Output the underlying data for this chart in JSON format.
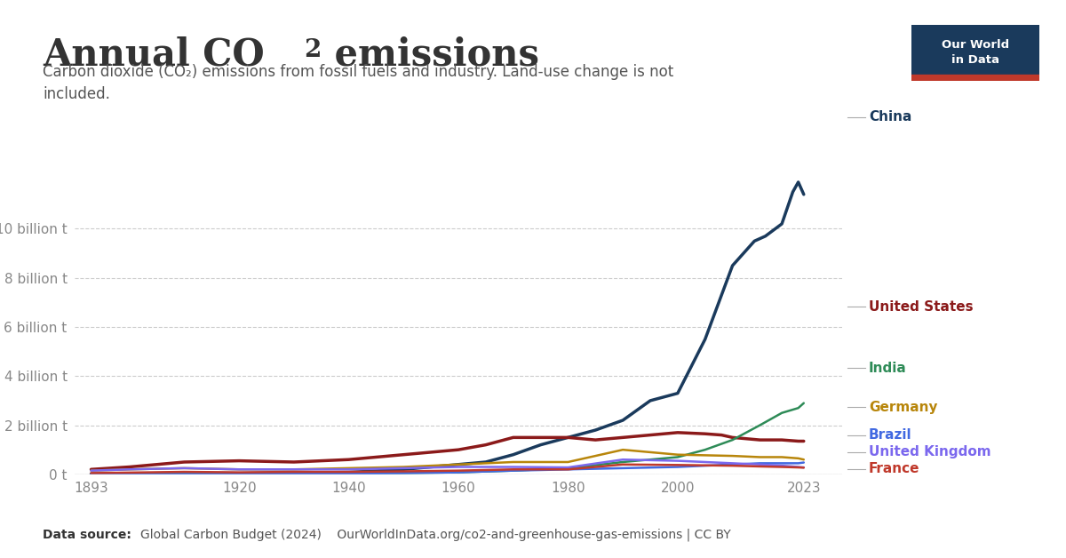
{
  "title": "Annual CO₂ emissions",
  "subtitle": "Carbon dioxide (CO₂) emissions from fossil fuels and industry. Land-use change is not\nincluded.",
  "footer": "Data source: Global Carbon Budget (2024)    OurWorldInData.org/co2-and-greenhouse-gas-emissions | CC BY",
  "ylabel": "",
  "background_color": "#ffffff",
  "logo_bg": "#1a3a5c",
  "logo_red": "#c0392b",
  "logo_text": "Our World\nin Data",
  "ytick_labels": [
    "0 t",
    "2 billion t",
    "4 billion t",
    "6 billion t",
    "8 billion t",
    "10 billion t"
  ],
  "ytick_values": [
    0,
    2000000000.0,
    4000000000.0,
    6000000000.0,
    8000000000.0,
    10000000000.0
  ],
  "series": {
    "China": {
      "color": "#1a3a5c",
      "label_color": "#1a3a5c",
      "years": [
        1893,
        1900,
        1910,
        1920,
        1930,
        1940,
        1950,
        1960,
        1965,
        1970,
        1975,
        1980,
        1985,
        1990,
        1995,
        2000,
        2005,
        2010,
        2014,
        2016,
        2019,
        2021,
        2022,
        2023
      ],
      "values": [
        20000000.0,
        30000000.0,
        50000000.0,
        40000000.0,
        60000000.0,
        80000000.0,
        200000000.0,
        400000000.0,
        500000000.0,
        800000000.0,
        1200000000.0,
        1500000000.0,
        1800000000.0,
        2200000000.0,
        3000000000.0,
        3300000000.0,
        5500000000.0,
        8500000000.0,
        9500000000.0,
        9700000000.0,
        10200000000.0,
        11500000000.0,
        11900000000.0,
        11400000000.0
      ]
    },
    "United States": {
      "color": "#8b1a1a",
      "label_color": "#8b1a1a",
      "years": [
        1893,
        1900,
        1910,
        1920,
        1930,
        1940,
        1950,
        1960,
        1965,
        1970,
        1975,
        1980,
        1985,
        1990,
        1995,
        2000,
        2005,
        2008,
        2010,
        2015,
        2019,
        2022,
        2023
      ],
      "values": [
        200000000.0,
        300000000.0,
        500000000.0,
        550000000.0,
        500000000.0,
        600000000.0,
        800000000.0,
        1000000000.0,
        1200000000.0,
        1500000000.0,
        1500000000.0,
        1500000000.0,
        1400000000.0,
        1500000000.0,
        1600000000.0,
        1700000000.0,
        1650000000.0,
        1600000000.0,
        1500000000.0,
        1400000000.0,
        1400000000.0,
        1350000000.0,
        1350000000.0
      ]
    },
    "India": {
      "color": "#2e8b57",
      "label_color": "#2e8b57",
      "years": [
        1893,
        1900,
        1910,
        1920,
        1930,
        1940,
        1950,
        1960,
        1970,
        1980,
        1990,
        2000,
        2005,
        2010,
        2015,
        2019,
        2022,
        2023
      ],
      "values": [
        10000000.0,
        15000000.0,
        20000000.0,
        25000000.0,
        30000000.0,
        40000000.0,
        50000000.0,
        80000000.0,
        150000000.0,
        250000000.0,
        500000000.0,
        700000000.0,
        1000000000.0,
        1400000000.0,
        2000000000.0,
        2500000000.0,
        2700000000.0,
        2900000000.0
      ]
    },
    "Germany": {
      "color": "#b8860b",
      "label_color": "#b8860b",
      "years": [
        1893,
        1900,
        1910,
        1920,
        1930,
        1940,
        1950,
        1960,
        1970,
        1980,
        1990,
        2000,
        2010,
        2015,
        2019,
        2022,
        2023
      ],
      "values": [
        150000000.0,
        200000000.0,
        250000000.0,
        200000000.0,
        200000000.0,
        250000000.0,
        300000000.0,
        400000000.0,
        500000000.0,
        500000000.0,
        1000000000.0,
        800000000.0,
        750000000.0,
        700000000.0,
        700000000.0,
        650000000.0,
        600000000.0
      ]
    },
    "Brazil": {
      "color": "#4169e1",
      "label_color": "#4169e1",
      "years": [
        1893,
        1900,
        1910,
        1920,
        1930,
        1940,
        1950,
        1960,
        1970,
        1980,
        1990,
        2000,
        2010,
        2015,
        2019,
        2022,
        2023
      ],
      "values": [
        5000000.0,
        8000000.0,
        10000000.0,
        15000000.0,
        20000000.0,
        30000000.0,
        50000000.0,
        80000000.0,
        150000000.0,
        200000000.0,
        250000000.0,
        300000000.0,
        400000000.0,
        450000000.0,
        450000000.0,
        450000000.0,
        480000000.0
      ]
    },
    "United Kingdom": {
      "color": "#7b68ee",
      "label_color": "#7b68ee",
      "years": [
        1893,
        1900,
        1910,
        1920,
        1930,
        1940,
        1950,
        1960,
        1970,
        1980,
        1990,
        2000,
        2010,
        2015,
        2019,
        2022,
        2023
      ],
      "values": [
        150000000.0,
        200000000.0,
        250000000.0,
        200000000.0,
        200000000.0,
        200000000.0,
        250000000.0,
        300000000.0,
        300000000.0,
        280000000.0,
        600000000.0,
        550000000.0,
        450000000.0,
        400000000.0,
        350000000.0,
        300000000.0,
        280000000.0
      ]
    },
    "France": {
      "color": "#c0392b",
      "label_color": "#c0392b",
      "years": [
        1893,
        1900,
        1910,
        1920,
        1930,
        1940,
        1950,
        1960,
        1970,
        1980,
        1990,
        2000,
        2010,
        2015,
        2019,
        2022,
        2023
      ],
      "values": [
        50000000.0,
        70000000.0,
        100000000.0,
        80000000.0,
        100000000.0,
        100000000.0,
        120000000.0,
        150000000.0,
        200000000.0,
        200000000.0,
        400000000.0,
        380000000.0,
        350000000.0,
        320000000.0,
        300000000.0,
        280000000.0,
        270000000.0
      ]
    }
  },
  "xmin": 1890,
  "xmax": 2030,
  "ymin": 0,
  "ymax": 12500000000.0,
  "xtick_years": [
    1893,
    1920,
    1940,
    1960,
    1980,
    2000,
    2023
  ],
  "title_color": "#333333",
  "subtitle_color": "#555555",
  "tick_color": "#888888",
  "grid_color": "#cccccc"
}
